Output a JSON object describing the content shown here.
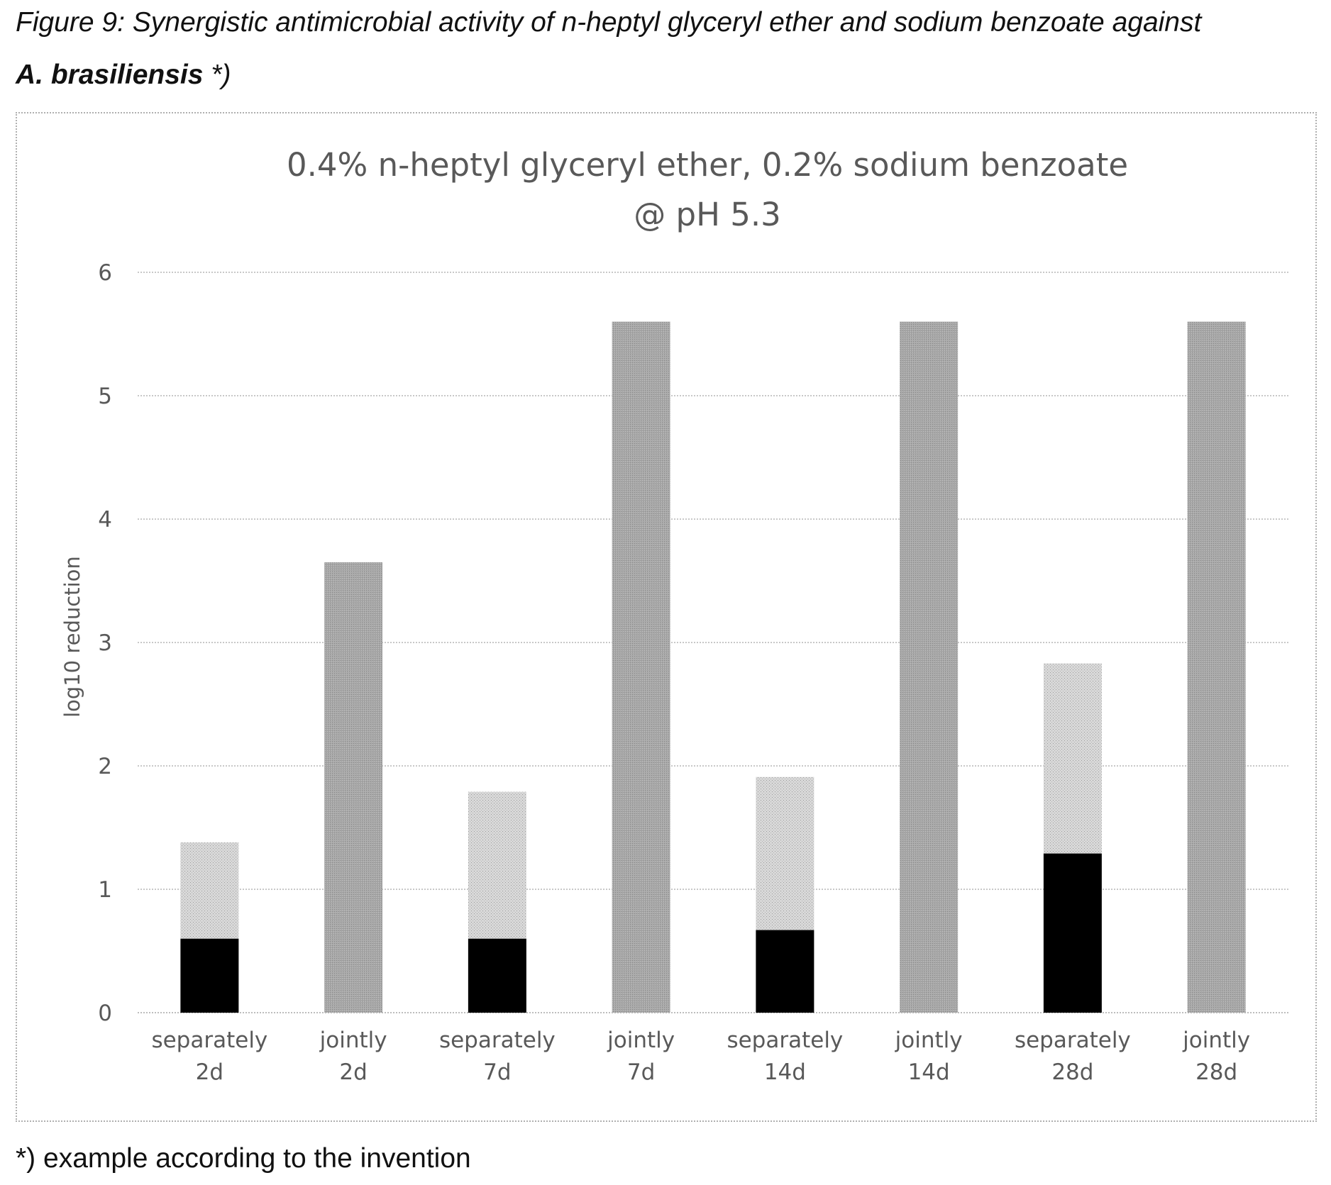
{
  "caption": {
    "line1": "Figure 9: Synergistic antimicrobial activity of n-heptyl glyceryl ether and sodium benzoate against",
    "line2_bold": "A. brasiliensis",
    "line2_rest": " *)"
  },
  "footnote": "*) example according to the invention",
  "colors": {
    "separately_lower": "#000000",
    "separately_upper": "#d2d2d2",
    "jointly": "#a6a6a6",
    "grid": "#c8c8c8",
    "text": "#595959"
  },
  "chart_data": {
    "type": "bar",
    "title": [
      "0.4% n-heptyl glyceryl ether, 0.2% sodium benzoate",
      "@ pH 5.3"
    ],
    "xlabel": "",
    "ylabel": "log10 reduction",
    "ylim": [
      0,
      6
    ],
    "yticks": [
      "0",
      "1",
      "2",
      "3",
      "4",
      "5",
      "6"
    ],
    "grid": true,
    "categories": [
      [
        "separately",
        "2d"
      ],
      [
        "jointly",
        "2d"
      ],
      [
        "separately",
        "7d"
      ],
      [
        "jointly",
        "7d"
      ],
      [
        "separately",
        "14d"
      ],
      [
        "jointly",
        "14d"
      ],
      [
        "separately",
        "28d"
      ],
      [
        "jointly",
        "28d"
      ]
    ],
    "stacked": true,
    "series": [
      {
        "color": "#000000",
        "values": [
          0.6,
          0,
          0.6,
          0,
          0.67,
          0,
          1.29,
          0
        ]
      },
      {
        "color": "#d2d2d2",
        "values": [
          0.78,
          0,
          1.19,
          0,
          1.24,
          0,
          1.54,
          0
        ]
      },
      {
        "color": "#a6a6a6",
        "values": [
          0,
          3.65,
          0,
          5.6,
          0,
          5.6,
          0,
          5.6
        ]
      }
    ]
  }
}
